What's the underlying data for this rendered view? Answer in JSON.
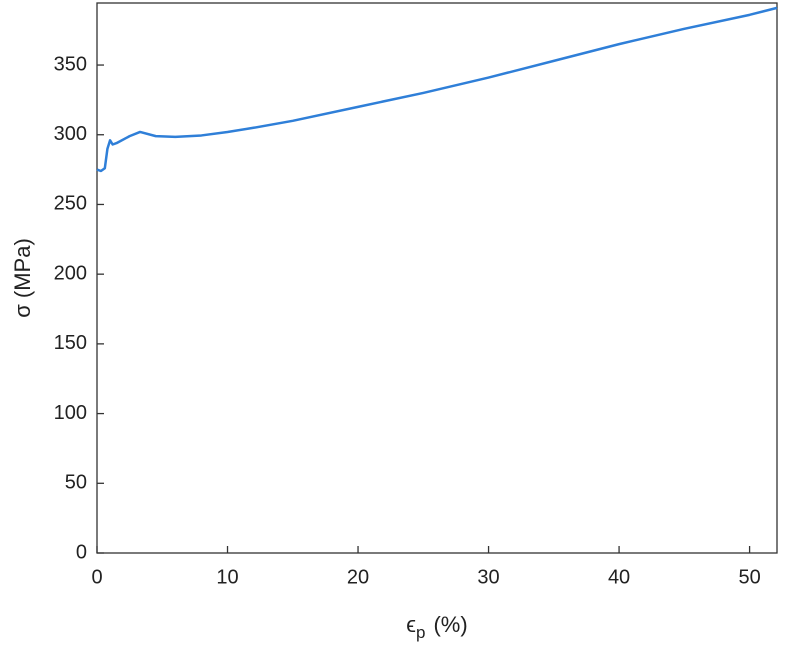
{
  "chart_data": {
    "type": "line",
    "xlabel": {
      "symbol": "ϵ",
      "subscript": "p",
      "unit": "(%)"
    },
    "ylabel": "σ (MPa)",
    "x": [
      0,
      0.3,
      0.6,
      0.8,
      1.0,
      1.2,
      1.5,
      2.5,
      3.3,
      4.5,
      6,
      8,
      10,
      12,
      15,
      20,
      25,
      30,
      35,
      40,
      45,
      50,
      52.1
    ],
    "series": [
      {
        "color": "#2f7fd8",
        "values": [
          275,
          274,
          276,
          290,
          296,
          293,
          294,
          299,
          302,
          299,
          298.5,
          299.5,
          302,
          305,
          310,
          320,
          330,
          341,
          353,
          365,
          376,
          386,
          391
        ]
      }
    ],
    "xlim": [
      0,
      52.1
    ],
    "ylim": [
      0,
      394.5
    ],
    "xticks": [
      0,
      10,
      20,
      30,
      40,
      50
    ],
    "yticks": [
      0,
      50,
      100,
      150,
      200,
      250,
      300,
      350
    ],
    "grid": false
  }
}
